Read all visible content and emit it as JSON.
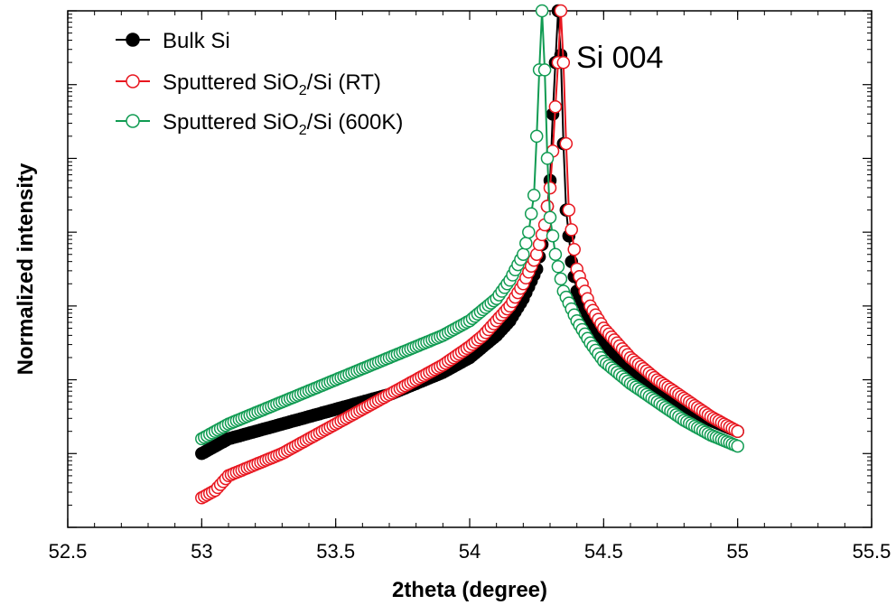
{
  "chart_data": {
    "type": "line",
    "title": "",
    "xlabel": "2theta (degree)",
    "ylabel": "Normalized intensity",
    "xlim": [
      52.5,
      55.5
    ],
    "ylim_log10": [
      -1.0,
      6.0
    ],
    "y_scale": "log",
    "y_tick_labels_shown": false,
    "x_ticks": [
      52.5,
      53,
      53.5,
      54,
      54.5,
      55,
      55.5
    ],
    "x_tick_labels": [
      "52.5",
      "53",
      "53.5",
      "54",
      "54.5",
      "55",
      "55.5"
    ],
    "annotation": {
      "text": "Si 004",
      "x": 54.37,
      "y_log10": 5.85
    },
    "legend": {
      "position": "top-left"
    },
    "series": [
      {
        "name": "Bulk Si",
        "name_main": "Bulk Si",
        "marker": "filled-circle",
        "color": "#000000",
        "peak_x": 54.33,
        "x": [
          53.0,
          53.1,
          53.2,
          53.3,
          53.4,
          53.5,
          53.6,
          53.7,
          53.8,
          53.9,
          54.0,
          54.05,
          54.1,
          54.15,
          54.2,
          54.25,
          54.28,
          54.3,
          54.31,
          54.32,
          54.33,
          54.34,
          54.35,
          54.36,
          54.38,
          54.4,
          54.45,
          54.5,
          54.6,
          54.7,
          54.8,
          54.9,
          55.0
        ],
        "y_log10": [
          0.0,
          0.2,
          0.3,
          0.4,
          0.5,
          0.6,
          0.7,
          0.8,
          0.95,
          1.1,
          1.3,
          1.45,
          1.6,
          1.8,
          2.1,
          2.5,
          3.0,
          3.7,
          4.6,
          5.3,
          6.0,
          5.4,
          4.2,
          3.3,
          2.6,
          2.2,
          1.8,
          1.5,
          1.15,
          0.9,
          0.65,
          0.45,
          0.3
        ]
      },
      {
        "name": "Sputtered SiO2/Si (RT)",
        "name_main": "Sputtered SiO",
        "name_sub": "2",
        "name_rest": "/Si (RT)",
        "marker": "open-circle",
        "color": "#e8161f",
        "peak_x": 54.34,
        "x": [
          53.0,
          53.05,
          53.1,
          53.2,
          53.3,
          53.4,
          53.5,
          53.6,
          53.7,
          53.8,
          53.9,
          54.0,
          54.05,
          54.1,
          54.15,
          54.2,
          54.25,
          54.28,
          54.3,
          54.31,
          54.32,
          54.33,
          54.34,
          54.35,
          54.36,
          54.37,
          54.4,
          54.45,
          54.5,
          54.6,
          54.7,
          54.8,
          54.9,
          55.0
        ],
        "y_log10": [
          -0.6,
          -0.5,
          -0.3,
          -0.15,
          0.0,
          0.2,
          0.4,
          0.6,
          0.8,
          1.0,
          1.2,
          1.45,
          1.6,
          1.8,
          2.0,
          2.3,
          2.7,
          3.1,
          3.6,
          4.1,
          4.7,
          5.3,
          6.0,
          5.3,
          4.2,
          3.3,
          2.5,
          2.0,
          1.7,
          1.3,
          1.0,
          0.75,
          0.5,
          0.3
        ]
      },
      {
        "name": "Sputtered SiO2/Si (600K)",
        "name_main": "Sputtered SiO",
        "name_sub": "2",
        "name_rest": "/Si (600K)",
        "marker": "open-circle",
        "color": "#109b52",
        "peak_x": 54.27,
        "x": [
          53.0,
          53.1,
          53.2,
          53.3,
          53.4,
          53.5,
          53.6,
          53.7,
          53.8,
          53.9,
          54.0,
          54.05,
          54.1,
          54.15,
          54.2,
          54.22,
          54.24,
          54.25,
          54.26,
          54.27,
          54.28,
          54.29,
          54.3,
          54.32,
          54.35,
          54.4,
          54.45,
          54.5,
          54.6,
          54.7,
          54.8,
          54.9,
          55.0
        ],
        "y_log10": [
          0.2,
          0.4,
          0.55,
          0.7,
          0.85,
          1.0,
          1.15,
          1.3,
          1.45,
          1.6,
          1.8,
          1.95,
          2.1,
          2.35,
          2.7,
          3.0,
          3.5,
          4.3,
          5.2,
          6.0,
          5.2,
          4.0,
          3.2,
          2.7,
          2.2,
          1.8,
          1.5,
          1.25,
          0.95,
          0.7,
          0.45,
          0.25,
          0.1
        ]
      }
    ]
  }
}
